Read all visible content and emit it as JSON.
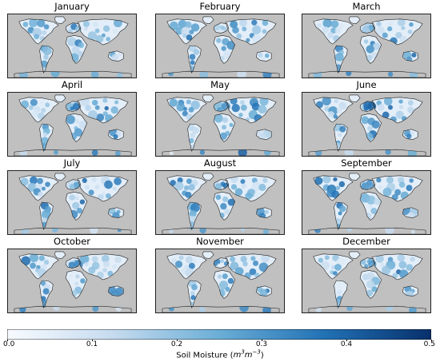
{
  "chart_data": {
    "type": "heatmap",
    "panels": [
      {
        "title": "January"
      },
      {
        "title": "February"
      },
      {
        "title": "March"
      },
      {
        "title": "April"
      },
      {
        "title": "May"
      },
      {
        "title": "June"
      },
      {
        "title": "July"
      },
      {
        "title": "August"
      },
      {
        "title": "September"
      },
      {
        "title": "October"
      },
      {
        "title": "November"
      },
      {
        "title": "December"
      }
    ],
    "colorbar": {
      "label_text": "Soil Moisture (",
      "label_unit_base": "m",
      "label_unit_sup1": "3",
      "label_unit_mid": "m",
      "label_unit_sup2": "−3",
      "label_close": ")",
      "range": [
        0.0,
        0.5
      ],
      "ticks": [
        "0.0",
        "0.1",
        "0.2",
        "0.3",
        "0.4",
        "0.5"
      ],
      "colors": [
        "#f7fbff",
        "#c6dbef",
        "#6baed6",
        "#2171b5",
        "#08306b"
      ]
    },
    "no_data_color": "#c0c0c0"
  }
}
